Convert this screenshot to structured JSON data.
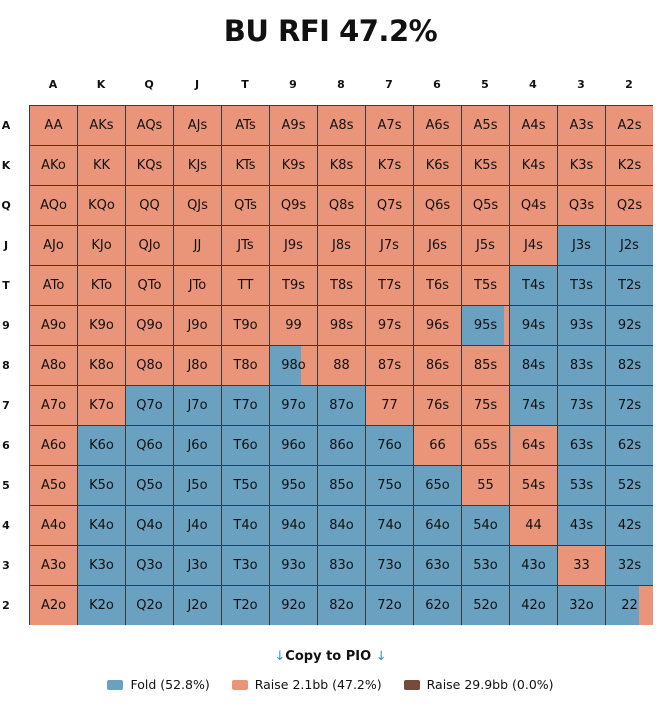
{
  "title": "BU RFI 47.2%",
  "ranks": [
    "A",
    "K",
    "Q",
    "J",
    "T",
    "9",
    "8",
    "7",
    "6",
    "5",
    "4",
    "3",
    "2"
  ],
  "colors": {
    "fold": "#6aa1c0",
    "raise_small": "#ea9479",
    "raise_big": "#764a3c"
  },
  "hands": [
    [
      "AA",
      "AKs",
      "AQs",
      "AJs",
      "ATs",
      "A9s",
      "A8s",
      "A7s",
      "A6s",
      "A5s",
      "A4s",
      "A3s",
      "A2s"
    ],
    [
      "AKo",
      "KK",
      "KQs",
      "KJs",
      "KTs",
      "K9s",
      "K8s",
      "K7s",
      "K6s",
      "K5s",
      "K4s",
      "K3s",
      "K2s"
    ],
    [
      "AQo",
      "KQo",
      "QQ",
      "QJs",
      "QTs",
      "Q9s",
      "Q8s",
      "Q7s",
      "Q6s",
      "Q5s",
      "Q4s",
      "Q3s",
      "Q2s"
    ],
    [
      "AJo",
      "KJo",
      "QJo",
      "JJ",
      "JTs",
      "J9s",
      "J8s",
      "J7s",
      "J6s",
      "J5s",
      "J4s",
      "J3s",
      "J2s"
    ],
    [
      "ATo",
      "KTo",
      "QTo",
      "JTo",
      "TT",
      "T9s",
      "T8s",
      "T7s",
      "T6s",
      "T5s",
      "T4s",
      "T3s",
      "T2s"
    ],
    [
      "A9o",
      "K9o",
      "Q9o",
      "J9o",
      "T9o",
      "99",
      "98s",
      "97s",
      "96s",
      "95s",
      "94s",
      "93s",
      "92s"
    ],
    [
      "A8o",
      "K8o",
      "Q8o",
      "J8o",
      "T8o",
      "98o",
      "88",
      "87s",
      "86s",
      "85s",
      "84s",
      "83s",
      "82s"
    ],
    [
      "A7o",
      "K7o",
      "Q7o",
      "J7o",
      "T7o",
      "97o",
      "87o",
      "77",
      "76s",
      "75s",
      "74s",
      "73s",
      "72s"
    ],
    [
      "A6o",
      "K6o",
      "Q6o",
      "J6o",
      "T6o",
      "96o",
      "86o",
      "76o",
      "66",
      "65s",
      "64s",
      "63s",
      "62s"
    ],
    [
      "A5o",
      "K5o",
      "Q5o",
      "J5o",
      "T5o",
      "95o",
      "85o",
      "75o",
      "65o",
      "55",
      "54s",
      "53s",
      "52s"
    ],
    [
      "A4o",
      "K4o",
      "Q4o",
      "J4o",
      "T4o",
      "94o",
      "84o",
      "74o",
      "64o",
      "54o",
      "44",
      "43s",
      "42s"
    ],
    [
      "A3o",
      "K3o",
      "Q3o",
      "J3o",
      "T3o",
      "93o",
      "83o",
      "73o",
      "63o",
      "53o",
      "43o",
      "33",
      "32s"
    ],
    [
      "A2o",
      "K2o",
      "Q2o",
      "J2o",
      "T2o",
      "92o",
      "82o",
      "72o",
      "62o",
      "52o",
      "42o",
      "32o",
      "22"
    ]
  ],
  "fold_freq": [
    [
      0,
      0,
      0,
      0,
      0,
      0,
      0,
      0,
      0,
      0,
      0,
      0,
      0
    ],
    [
      0,
      0,
      0,
      0,
      0,
      0,
      0,
      0,
      0,
      0,
      0,
      0,
      0
    ],
    [
      0,
      0,
      0,
      0,
      0,
      0,
      0,
      0,
      0,
      0,
      0,
      0,
      0
    ],
    [
      0,
      0,
      0,
      0,
      0,
      0,
      0,
      0,
      0,
      0,
      0,
      1,
      1
    ],
    [
      0,
      0,
      0,
      0,
      0,
      0,
      0,
      0,
      0,
      0,
      1,
      1,
      1
    ],
    [
      0,
      0,
      0,
      0,
      0,
      0,
      0,
      0,
      0,
      0.9,
      1,
      1,
      1
    ],
    [
      0,
      0,
      0,
      0,
      0,
      0.65,
      0,
      0,
      0,
      0,
      1,
      1,
      1
    ],
    [
      0,
      0,
      1,
      1,
      1,
      1,
      1,
      0,
      0,
      0,
      1,
      1,
      1
    ],
    [
      0,
      1,
      1,
      1,
      1,
      1,
      1,
      1,
      0,
      0,
      0.02,
      1,
      1
    ],
    [
      0,
      1,
      1,
      1,
      1,
      1,
      1,
      1,
      1,
      0,
      0,
      1,
      1
    ],
    [
      0,
      1,
      1,
      1,
      1,
      1,
      1,
      1,
      1,
      1,
      0,
      1,
      1
    ],
    [
      0,
      1,
      1,
      1,
      1,
      1,
      1,
      1,
      1,
      1,
      1,
      0,
      1
    ],
    [
      0,
      1,
      1,
      1,
      1,
      1,
      1,
      1,
      1,
      1,
      1,
      1,
      0.7
    ]
  ],
  "copy_button": {
    "arrow_left": "↓",
    "label": "Copy to PIO",
    "arrow_right": "↓"
  },
  "legend": [
    {
      "label": "Fold (52.8%)",
      "color": "#6aa1c0"
    },
    {
      "label": "Raise 2.1bb (47.2%)",
      "color": "#ea9479"
    },
    {
      "label": "Raise 29.9bb (0.0%)",
      "color": "#764a3c"
    }
  ]
}
